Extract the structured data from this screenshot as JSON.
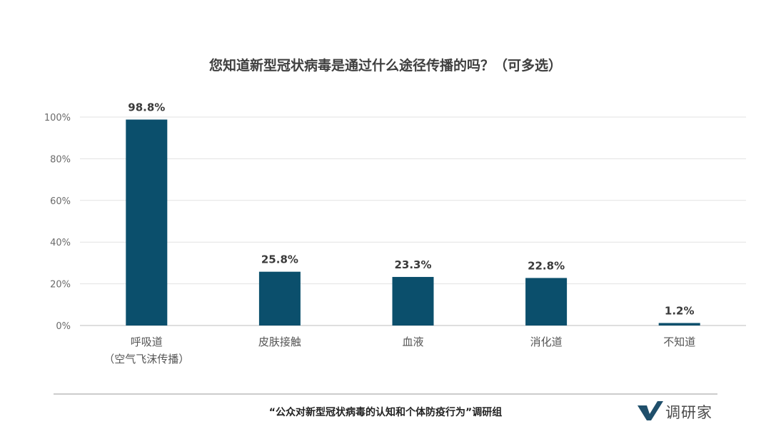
{
  "chart_data": {
    "type": "bar",
    "title": "您知道新型冠状病毒是通过什么途径传播的吗？（可多选）",
    "categories": [
      [
        "呼吸道",
        "（空气飞沫传播）"
      ],
      [
        "皮肤接触"
      ],
      [
        "血液"
      ],
      [
        "消化道"
      ],
      [
        "不知道"
      ]
    ],
    "values": [
      98.8,
      25.8,
      23.3,
      22.8,
      1.2
    ],
    "value_labels": [
      "98.8%",
      "25.8%",
      "23.3%",
      "22.8%",
      "1.2%"
    ],
    "y_ticks": [
      "0%",
      "20%",
      "40%",
      "60%",
      "80%",
      "100%"
    ],
    "ylim": [
      0,
      100
    ],
    "grid": true,
    "bar_color": "#0b4f6c"
  },
  "footer": {
    "source": "“公众对新型冠状病毒的认知和个体防疫行为”调研组",
    "logo_text": "调研家",
    "logo_color": "#1f4f6b"
  }
}
